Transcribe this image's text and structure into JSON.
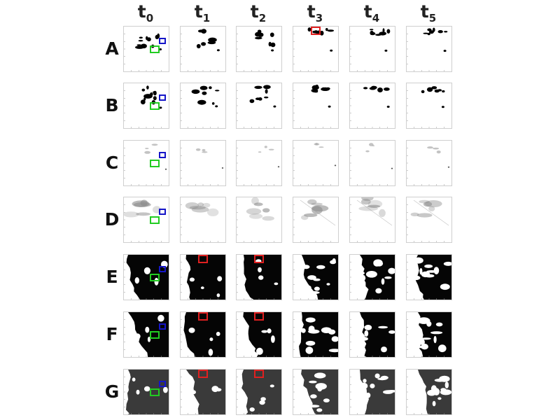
{
  "columns": [
    {
      "base": "t",
      "sub": "0"
    },
    {
      "base": "t",
      "sub": "1"
    },
    {
      "base": "t",
      "sub": "2"
    },
    {
      "base": "t",
      "sub": "3"
    },
    {
      "base": "t",
      "sub": "4"
    },
    {
      "base": "t",
      "sub": "5"
    }
  ],
  "rows": [
    {
      "label": "A",
      "style": "blob"
    },
    {
      "label": "B",
      "style": "blob"
    },
    {
      "label": "C",
      "style": "faint"
    },
    {
      "label": "D",
      "style": "gray"
    },
    {
      "label": "E",
      "style": "dark"
    },
    {
      "label": "F",
      "style": "dark"
    },
    {
      "label": "G",
      "style": "dark"
    }
  ],
  "colors": {
    "green_box": "#22cc22",
    "blue_box": "#1515c8",
    "red_box": "#e02020",
    "panel_border": "#cfcfcf"
  },
  "highlights": [
    {
      "row": "A",
      "col": 0,
      "color": "green"
    },
    {
      "row": "A",
      "col": 0,
      "color": "blue"
    },
    {
      "row": "A",
      "col": 3,
      "color": "red"
    },
    {
      "row": "B",
      "col": 0,
      "color": "green"
    },
    {
      "row": "B",
      "col": 0,
      "color": "blue"
    },
    {
      "row": "C",
      "col": 0,
      "color": "green"
    },
    {
      "row": "C",
      "col": 0,
      "color": "blue"
    },
    {
      "row": "D",
      "col": 0,
      "color": "green"
    },
    {
      "row": "D",
      "col": 0,
      "color": "blue"
    },
    {
      "row": "E",
      "col": 0,
      "color": "green"
    },
    {
      "row": "E",
      "col": 0,
      "color": "blue"
    },
    {
      "row": "E",
      "col": 1,
      "color": "red"
    },
    {
      "row": "E",
      "col": 2,
      "color": "red"
    },
    {
      "row": "F",
      "col": 0,
      "color": "green"
    },
    {
      "row": "F",
      "col": 0,
      "color": "blue"
    },
    {
      "row": "F",
      "col": 1,
      "color": "red"
    },
    {
      "row": "F",
      "col": 2,
      "color": "red"
    },
    {
      "row": "G",
      "col": 0,
      "color": "green"
    },
    {
      "row": "G",
      "col": 0,
      "color": "blue"
    },
    {
      "row": "G",
      "col": 1,
      "color": "red"
    },
    {
      "row": "G",
      "col": 2,
      "color": "red"
    }
  ]
}
